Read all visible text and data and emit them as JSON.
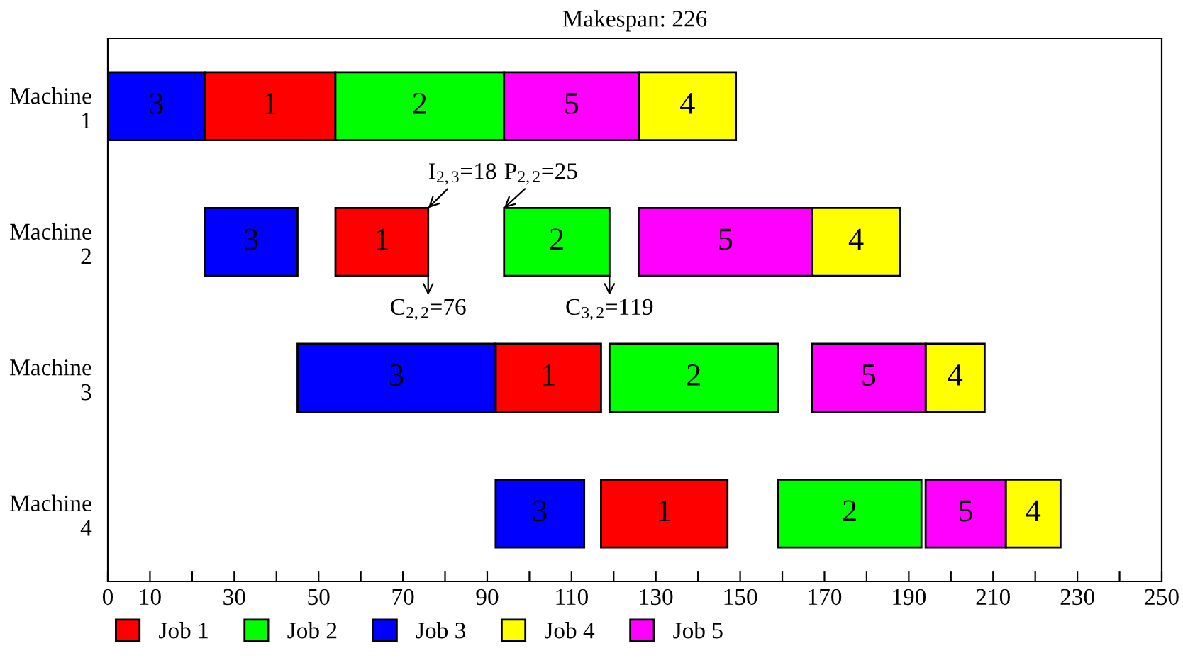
{
  "chart_data": {
    "type": "bar",
    "orientation": "horizontal",
    "title": "Makespan: 226",
    "categories": [
      "Machine\n1",
      "Machine\n2",
      "Machine\n3",
      "Machine\n4"
    ],
    "series": [
      {
        "name": "Job 1",
        "color": "#ff0000",
        "base": [
          23,
          54,
          92,
          117
        ],
        "values": [
          31,
          22,
          25,
          30
        ]
      },
      {
        "name": "Job 2",
        "color": "#00ff00",
        "base": [
          54,
          94,
          119,
          159
        ],
        "values": [
          40,
          25,
          40,
          34
        ]
      },
      {
        "name": "Job 3",
        "color": "#0000ff",
        "base": [
          0,
          23,
          45,
          92
        ],
        "values": [
          23,
          22,
          47,
          21
        ]
      },
      {
        "name": "Job 4",
        "color": "#ffff00",
        "base": [
          126,
          167,
          194,
          213
        ],
        "values": [
          23,
          21,
          14,
          13
        ]
      },
      {
        "name": "Job 5",
        "color": "#ff00ff",
        "base": [
          94,
          126,
          167,
          194
        ],
        "values": [
          32,
          41,
          27,
          19
        ]
      }
    ],
    "xlim": [
      0,
      250
    ],
    "xticks": [
      0,
      10,
      {
        "value": 20,
        "label": null
      },
      30,
      {
        "value": 40,
        "label": null
      },
      50,
      {
        "value": 60,
        "label": null
      },
      70,
      {
        "value": 80,
        "label": null
      },
      90,
      {
        "value": 100,
        "label": null
      },
      110,
      {
        "value": 120,
        "label": null
      },
      130,
      {
        "value": 140,
        "label": null
      },
      150,
      {
        "value": 160,
        "label": null
      },
      170,
      {
        "value": 180,
        "label": null
      },
      190,
      {
        "value": 200,
        "label": null
      },
      210,
      {
        "value": 220,
        "label": null
      },
      230,
      {
        "value": 240,
        "label": null
      },
      250
    ],
    "annotations": [
      {
        "text": "3",
        "x": 23,
        "y": "Machine\n1"
      },
      {
        "text": "1",
        "x": 54,
        "y": "Machine\n1"
      },
      {
        "text": "2",
        "x": 94,
        "y": "Machine\n1"
      },
      {
        "text": "5",
        "x": 126,
        "y": "Machine\n1"
      },
      {
        "text": "4",
        "x": 149,
        "y": "Machine\n1"
      },
      {
        "text": "3",
        "x": 45,
        "y": "Machine\n2"
      },
      {
        "text": "1",
        "x": 76,
        "y": "Machine\n2"
      },
      {
        "text": "2",
        "x": 119,
        "y": "Machine\n2"
      },
      {
        "text": "5",
        "x": 167,
        "y": "Machine\n2"
      },
      {
        "text": "4",
        "x": 188,
        "y": "Machine\n2"
      },
      {
        "text": "3",
        "x": 92,
        "y": "Machine\n3"
      },
      {
        "text": "1",
        "x": 117,
        "y": "Machine\n3"
      },
      {
        "text": "2",
        "x": 159,
        "y": "Machine\n3"
      },
      {
        "text": "5",
        "x": 194,
        "y": "Machine\n3"
      },
      {
        "text": "4",
        "x": 208,
        "y": "Machine\n3"
      },
      {
        "text": "3",
        "x": 113,
        "y": "Machine\n4"
      },
      {
        "text": "1",
        "x": 147,
        "y": "Machine\n4"
      },
      {
        "text": "2",
        "x": 193,
        "y": "Machine\n4"
      },
      {
        "text": "5",
        "x": 213,
        "y": "Machine\n4"
      },
      {
        "text": "4",
        "x": 226,
        "y": "Machine\n4"
      },
      {
        "text": "I$_{2,3}$=18",
        "x": 76,
        "y": "Machine\n2"
      },
      {
        "text": "P$_{2,2}$=25",
        "x": 94,
        "y": "Machine\n2"
      },
      {
        "text": "C$_{2,2}$=76",
        "x": 76,
        "y": "Machine\n2"
      },
      {
        "text": "C$_{3,2}$=119",
        "x": 119,
        "y": "Machine\n2"
      }
    ],
    "grid": false,
    "legend": "bottom left"
  }
}
